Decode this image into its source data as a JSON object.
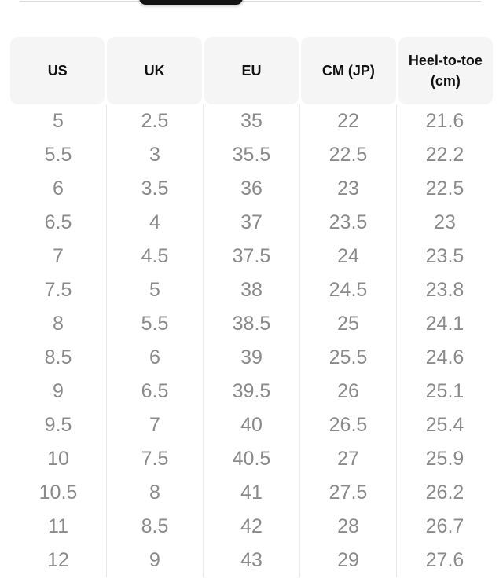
{
  "toggle": {
    "note": "selected segment pill, cut off at top edge"
  },
  "table": {
    "columns": [
      "US",
      "UK",
      "EU",
      "CM (JP)",
      "Heel-to-toe (cm)"
    ],
    "rows": [
      [
        "5",
        "2.5",
        "35",
        "22",
        "21.6"
      ],
      [
        "5.5",
        "3",
        "35.5",
        "22.5",
        "22.2"
      ],
      [
        "6",
        "3.5",
        "36",
        "23",
        "22.5"
      ],
      [
        "6.5",
        "4",
        "37",
        "23.5",
        "23"
      ],
      [
        "7",
        "4.5",
        "37.5",
        "24",
        "23.5"
      ],
      [
        "7.5",
        "5",
        "38",
        "24.5",
        "23.8"
      ],
      [
        "8",
        "5.5",
        "38.5",
        "25",
        "24.1"
      ],
      [
        "8.5",
        "6",
        "39",
        "25.5",
        "24.6"
      ],
      [
        "9",
        "6.5",
        "39.5",
        "26",
        "25.1"
      ],
      [
        "9.5",
        "7",
        "40",
        "26.5",
        "25.4"
      ],
      [
        "10",
        "7.5",
        "40.5",
        "27",
        "25.9"
      ],
      [
        "10.5",
        "8",
        "41",
        "27.5",
        "26.2"
      ],
      [
        "11",
        "8.5",
        "42",
        "28",
        "26.7"
      ],
      [
        "12",
        "9",
        "43",
        "29",
        "27.6"
      ]
    ]
  },
  "colors": {
    "header_bg": "#f5f5f5",
    "header_text": "#111111",
    "body_text": "#8a8a8a",
    "divider": "#e9e9e9",
    "pill": "#141414",
    "hairline": "#d9d9d9",
    "page_bg": "#ffffff"
  }
}
